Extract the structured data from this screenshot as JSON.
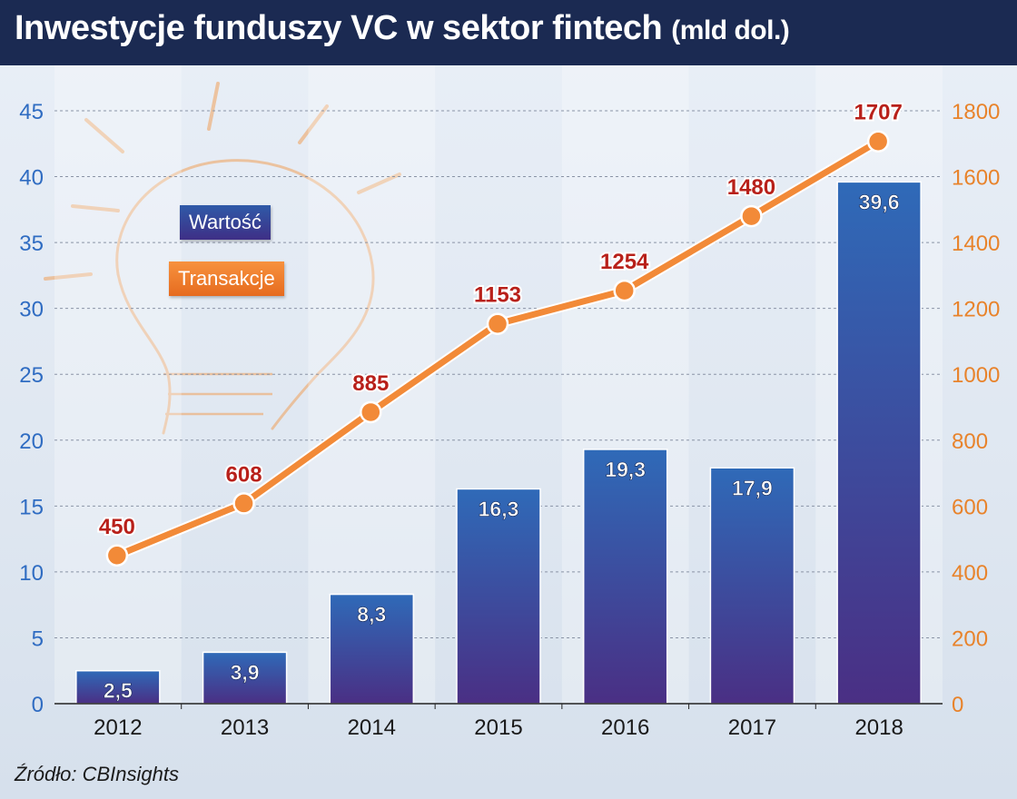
{
  "title": {
    "main": "Inwestycje funduszy VC w sektor fintech",
    "unit": "(mld dol.)"
  },
  "source": "Źródło: CBInsights",
  "legend": [
    {
      "label": "Wartość",
      "color": "#2f5aa8"
    },
    {
      "label": "Transakcje",
      "color": "#f28a38"
    }
  ],
  "colors": {
    "title_bg": "#1b2a52",
    "bar_top": "#2f6ab8",
    "bar_bottom": "#4a2f84",
    "line": "#f28a38",
    "left_axis_text": "#2f6cc2",
    "right_axis_text": "#e8832b",
    "line_label_text": "#b8201a"
  },
  "chart_data": {
    "type": "bar",
    "categories": [
      "2012",
      "2013",
      "2014",
      "2015",
      "2016",
      "2017",
      "2018"
    ],
    "series": [
      {
        "name": "Wartość",
        "type": "bar",
        "axis": "left",
        "values": [
          2.5,
          3.9,
          8.3,
          16.3,
          19.3,
          17.9,
          39.6
        ],
        "labels": [
          "2,5",
          "3,9",
          "8,3",
          "16,3",
          "19,3",
          "17,9",
          "39,6"
        ]
      },
      {
        "name": "Transakcje",
        "type": "line",
        "axis": "right",
        "values": [
          450,
          608,
          885,
          1153,
          1254,
          1480,
          1707
        ],
        "labels": [
          "450",
          "608",
          "885",
          "1153",
          "1254",
          "1480",
          "1707"
        ]
      }
    ],
    "y_left": {
      "min": 0,
      "max": 45,
      "ticks": [
        0,
        5,
        10,
        15,
        20,
        25,
        30,
        35,
        40,
        45
      ]
    },
    "y_right": {
      "min": 0,
      "max": 1800,
      "ticks": [
        0,
        200,
        400,
        600,
        800,
        1000,
        1200,
        1400,
        1600,
        1800
      ]
    },
    "grid": "horizontal dashed",
    "legend_position": "top-left"
  }
}
